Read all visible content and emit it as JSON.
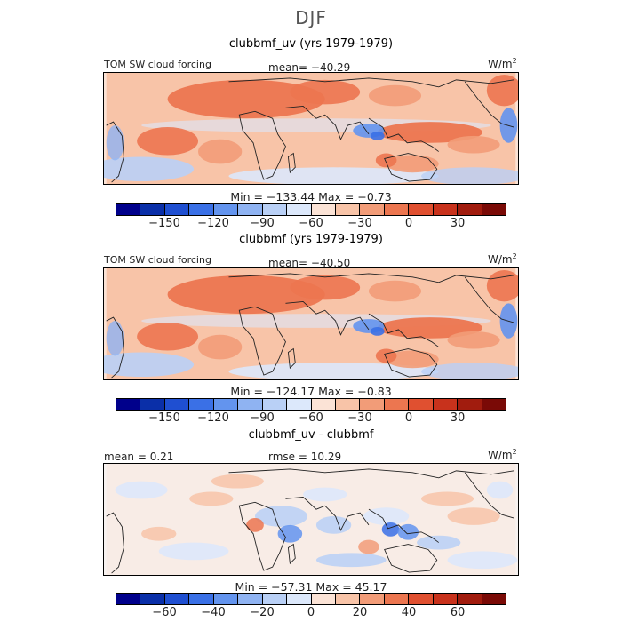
{
  "title": "DJF",
  "panels": [
    {
      "title": "clubbmf_uv (yrs 1979-1979)",
      "left_label": "TOM SW cloud forcing",
      "center_label": "mean= −40.29",
      "units": "W/m",
      "units_sup": "2",
      "stats": "Min = −133.44 Max = −0.73",
      "map_kind": "field_a"
    },
    {
      "title": "clubbmf (yrs 1979-1979)",
      "left_label": "TOM SW cloud forcing",
      "center_label": "mean= −40.50",
      "units": "W/m",
      "units_sup": "2",
      "stats": "Min = −124.17 Max = −0.83",
      "map_kind": "field_b"
    },
    {
      "title": "clubbmf_uv - clubbmf",
      "left_label": "mean =   0.21",
      "center_label": "rmse =  10.29",
      "units": "W/m",
      "units_sup": "2",
      "stats": "Min = −57.31 Max =  45.17",
      "map_kind": "diff"
    }
  ],
  "colorbars": [
    {
      "colors": [
        "#00008b",
        "#0a2fa8",
        "#1f4fd1",
        "#3a70e6",
        "#6394ee",
        "#8fb3f2",
        "#b9d0f6",
        "#dce8fb",
        "#fbe3d6",
        "#f8c4a8",
        "#f29c78",
        "#ec7650",
        "#e05030",
        "#c8321c",
        "#a11c0e",
        "#7a0a06"
      ],
      "ticks": [
        "−150",
        "−120",
        "−90",
        "−60",
        "−30",
        "0",
        "30"
      ],
      "tick_values": [
        -150,
        -120,
        -90,
        -60,
        -30,
        0,
        30
      ],
      "range": [
        -180,
        60
      ]
    },
    {
      "colors": [
        "#00008b",
        "#0a2fa8",
        "#1f4fd1",
        "#3a70e6",
        "#6394ee",
        "#8fb3f2",
        "#b9d0f6",
        "#dce8fb",
        "#fbe3d6",
        "#f8c4a8",
        "#f29c78",
        "#ec7650",
        "#e05030",
        "#c8321c",
        "#a11c0e",
        "#7a0a06"
      ],
      "ticks": [
        "−150",
        "−120",
        "−90",
        "−60",
        "−30",
        "0",
        "30"
      ],
      "tick_values": [
        -150,
        -120,
        -90,
        -60,
        -30,
        0,
        30
      ],
      "range": [
        -180,
        60
      ]
    },
    {
      "colors": [
        "#00008b",
        "#0a2fa8",
        "#1f4fd1",
        "#3a70e6",
        "#6394ee",
        "#8fb3f2",
        "#b9d0f6",
        "#dce8fb",
        "#fbe3d6",
        "#f8c4a8",
        "#f29c78",
        "#ec7650",
        "#e05030",
        "#c8321c",
        "#a11c0e",
        "#7a0a06"
      ],
      "ticks": [
        "−60",
        "−40",
        "−20",
        "0",
        "20",
        "40",
        "60"
      ],
      "tick_values": [
        -60,
        -40,
        -20,
        0,
        20,
        40,
        60
      ],
      "range": [
        -80,
        80
      ]
    }
  ]
}
